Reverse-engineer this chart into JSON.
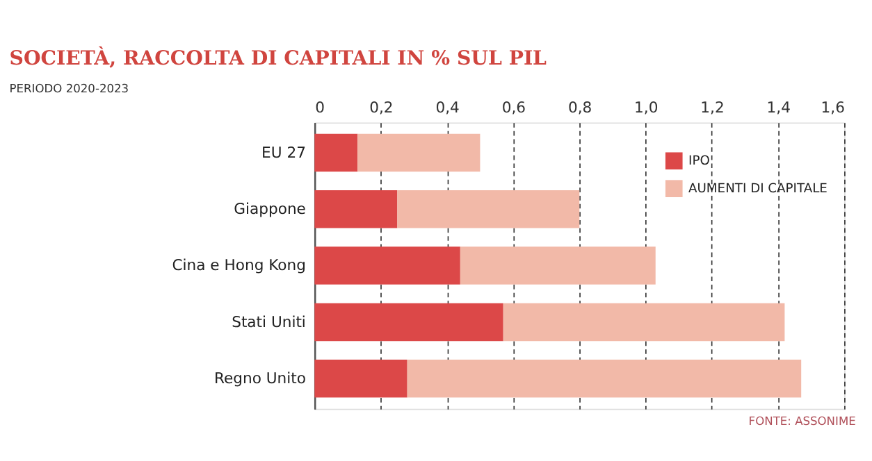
{
  "chart_data": {
    "type": "bar",
    "orientation": "horizontal",
    "stacked": true,
    "title": "SOCIETÀ, RACCOLTA DI CAPITALI IN % SUL PIL",
    "subtitle": "PERIODO 2020-2023",
    "categories": [
      "EU 27",
      "Giappone",
      "Cina e Hong Kong",
      "Stati Uniti",
      "Regno Unito"
    ],
    "series": [
      {
        "name": "IPO",
        "color": "#dc4848",
        "values": [
          0.13,
          0.25,
          0.44,
          0.57,
          0.28
        ]
      },
      {
        "name": "AUMENTI DI CAPITALE",
        "color": "#f2b9a8",
        "values": [
          0.37,
          0.55,
          0.59,
          0.85,
          1.19
        ]
      }
    ],
    "xlim": [
      0,
      1.6
    ],
    "xticks": [
      0,
      {
        "value": 0.2,
        "label": "0,2"
      },
      {
        "value": 0.4,
        "label": "0,4"
      },
      {
        "value": 0.6,
        "label": "0,6"
      },
      {
        "value": 0.8,
        "label": "0,8"
      },
      {
        "value": 1.0,
        "label": "1,0"
      },
      {
        "value": 1.2,
        "label": "1,2"
      },
      {
        "value": 1.4,
        "label": "1,4"
      },
      {
        "value": 1.6,
        "label": "1,6"
      }
    ],
    "grid": "x",
    "legend": "top right",
    "annotations": [
      "FONTE: ASSONIME"
    ]
  }
}
